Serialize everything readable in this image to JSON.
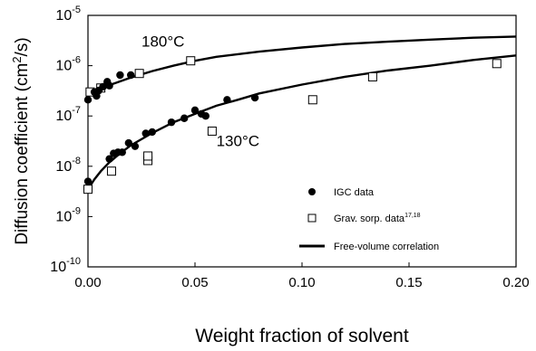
{
  "chart_data": {
    "type": "scatter",
    "xlabel": "Weight fraction of solvent",
    "ylabel_main": "Diffusion coefficient (cm",
    "ylabel_sup": "2",
    "ylabel_tail": "/s)",
    "xlim": [
      0,
      0.2
    ],
    "ylim": [
      1e-10,
      1e-05
    ],
    "y_scale": "log",
    "x_ticks": [
      {
        "v": 0.0,
        "label": "0.00"
      },
      {
        "v": 0.05,
        "label": "0.05"
      },
      {
        "v": 0.1,
        "label": "0.10"
      },
      {
        "v": 0.15,
        "label": "0.15"
      },
      {
        "v": 0.2,
        "label": "0.20"
      }
    ],
    "y_ticks": [
      {
        "v": 1e-10,
        "base": "10",
        "exp": "-10"
      },
      {
        "v": 1e-09,
        "base": "10",
        "exp": "-9"
      },
      {
        "v": 1e-08,
        "base": "10",
        "exp": "-8"
      },
      {
        "v": 1e-07,
        "base": "10",
        "exp": "-7"
      },
      {
        "v": 1e-06,
        "base": "10",
        "exp": "-6"
      },
      {
        "v": 1e-05,
        "base": "10",
        "exp": "-5"
      }
    ],
    "grid": false,
    "legend_position": "bottom-right",
    "annotations": [
      {
        "text": "180°C",
        "x": 0.025,
        "y": 2.4e-06
      },
      {
        "text": "130°C",
        "x": 0.06,
        "y": 2.5e-08
      }
    ],
    "series": [
      {
        "name": "IGC data",
        "marker": "filled-circle",
        "points": [
          [
            0.0,
            2.1e-07
          ],
          [
            0.003,
            3e-07
          ],
          [
            0.004,
            2.5e-07
          ],
          [
            0.005,
            3.2e-07
          ],
          [
            0.007,
            3.8e-07
          ],
          [
            0.009,
            4.8e-07
          ],
          [
            0.01,
            4e-07
          ],
          [
            0.015,
            6.5e-07
          ],
          [
            0.02,
            6.5e-07
          ],
          [
            0.0,
            5e-09
          ],
          [
            0.01,
            1.4e-08
          ],
          [
            0.012,
            1.8e-08
          ],
          [
            0.014,
            1.9e-08
          ],
          [
            0.016,
            1.9e-08
          ],
          [
            0.019,
            2.9e-08
          ],
          [
            0.022,
            2.5e-08
          ],
          [
            0.027,
            4.5e-08
          ],
          [
            0.03,
            4.8e-08
          ],
          [
            0.039,
            7.5e-08
          ],
          [
            0.045,
            9e-08
          ],
          [
            0.05,
            1.3e-07
          ],
          [
            0.053,
            1.1e-07
          ],
          [
            0.055,
            1e-07
          ],
          [
            0.065,
            2.1e-07
          ],
          [
            0.078,
            2.3e-07
          ]
        ]
      },
      {
        "name": "Grav. sorp. data",
        "name_sup": "17,18",
        "marker": "open-square",
        "points": [
          [
            0.001,
            3e-07
          ],
          [
            0.006,
            3.6e-07
          ],
          [
            0.024,
            7e-07
          ],
          [
            0.048,
            1.25e-06
          ],
          [
            0.0,
            3.5e-09
          ],
          [
            0.011,
            8e-09
          ],
          [
            0.028,
            1.3e-08
          ],
          [
            0.028,
            1.6e-08
          ],
          [
            0.058,
            5e-08
          ],
          [
            0.105,
            2.1e-07
          ],
          [
            0.133,
            6e-07
          ],
          [
            0.191,
            1.1e-06
          ]
        ]
      },
      {
        "name": "Free-volume correlation",
        "type": "line",
        "curves": [
          [
            [
              0.0,
              2.8e-07
            ],
            [
              0.005,
              3.4e-07
            ],
            [
              0.01,
              4.1e-07
            ],
            [
              0.02,
              5.8e-07
            ],
            [
              0.03,
              7.8e-07
            ],
            [
              0.04,
              1e-06
            ],
            [
              0.05,
              1.25e-06
            ],
            [
              0.06,
              1.5e-06
            ],
            [
              0.08,
              1.9e-06
            ],
            [
              0.1,
              2.3e-06
            ],
            [
              0.12,
              2.7e-06
            ],
            [
              0.14,
              3e-06
            ],
            [
              0.16,
              3.3e-06
            ],
            [
              0.18,
              3.6e-06
            ],
            [
              0.2,
              3.8e-06
            ]
          ],
          [
            [
              0.0,
              3.5e-09
            ],
            [
              0.003,
              5.5e-09
            ],
            [
              0.006,
              8e-09
            ],
            [
              0.01,
              1.2e-08
            ],
            [
              0.015,
              1.8e-08
            ],
            [
              0.02,
              2.6e-08
            ],
            [
              0.03,
              4.6e-08
            ],
            [
              0.04,
              7.5e-08
            ],
            [
              0.05,
              1.1e-07
            ],
            [
              0.06,
              1.6e-07
            ],
            [
              0.07,
              2.1e-07
            ],
            [
              0.08,
              2.8e-07
            ],
            [
              0.1,
              4.2e-07
            ],
            [
              0.12,
              6e-07
            ],
            [
              0.14,
              8e-07
            ],
            [
              0.16,
              1e-06
            ],
            [
              0.18,
              1.3e-06
            ],
            [
              0.2,
              1.6e-06
            ]
          ]
        ]
      }
    ]
  }
}
